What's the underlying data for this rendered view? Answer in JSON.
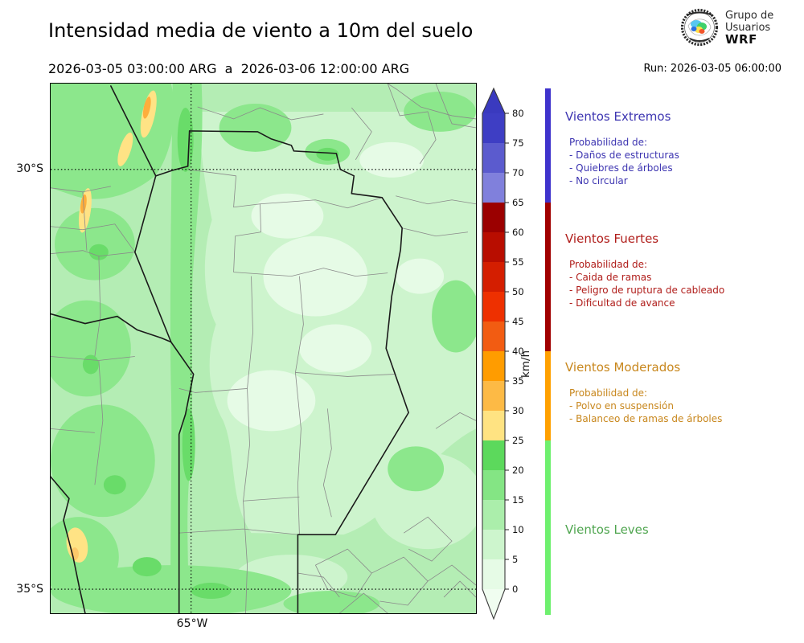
{
  "header": {
    "title": "Intensidad media de viento a 10m del suelo",
    "period": "2026-03-05 03:00:00 ARG  a  2026-03-06 12:00:00 ARG",
    "run_label": "Run: 2026-03-05 06:00:00",
    "logo": {
      "line1": "Grupo de",
      "line2": "Usuarios",
      "line3": "WRF"
    }
  },
  "map": {
    "lat_labels": [
      {
        "text": "30°S"
      },
      {
        "text": "35°S"
      }
    ],
    "lon_label": "65°W",
    "colors": {
      "base": "#b4edb4",
      "light": "#cdf4cd",
      "lighter": "#e6fbe6",
      "medium": "#8ce78c",
      "dark": "#69dc69",
      "yellow": "#ffe385",
      "orange": "#feae3c"
    }
  },
  "colorbar": {
    "unit": "km/h",
    "ticks": [
      0,
      5,
      10,
      15,
      20,
      25,
      30,
      35,
      40,
      45,
      50,
      55,
      60,
      65,
      70,
      75,
      80
    ],
    "segment_colors": [
      "#e6fbe6",
      "#cdf5cd",
      "#abeeab",
      "#84e584",
      "#5cd95c",
      "#ffe382",
      "#fdba45",
      "#ff9c00",
      "#f25c12",
      "#ee3000",
      "#d41e00",
      "#b80d00",
      "#9b0000",
      "#8080dc",
      "#5b5bce",
      "#3e3ec4"
    ],
    "over_color": "#3a3abf",
    "under_color": "#f0fdf0"
  },
  "categories": [
    {
      "id": "extremos",
      "title": "Vientos Extremos",
      "color": "#3d35b1",
      "strip_color": "#3f33cc",
      "prob_label": "Probabilidad de:",
      "items": [
        "- Daños de estructuras",
        "- Quiebres de árboles",
        "- No circular"
      ]
    },
    {
      "id": "fuertes",
      "title": "Vientos Fuertes",
      "color": "#b01d1a",
      "strip_color": "#a00000",
      "prob_label": "Probabilidad de:",
      "items": [
        "- Caida de ramas",
        "- Peligro de ruptura de cableado",
        "- Dificultad de avance"
      ]
    },
    {
      "id": "moderados",
      "title": "Vientos Moderados",
      "color": "#c8871d",
      "strip_color": "#ffa000",
      "prob_label": "Probabilidad de:",
      "items": [
        "- Polvo en suspensión",
        "- Balanceo de ramas de árboles"
      ]
    },
    {
      "id": "leves",
      "title": "Vientos Leves",
      "color": "#4fa54f",
      "strip_color": "#6ef06e",
      "prob_label": null,
      "items": []
    }
  ]
}
